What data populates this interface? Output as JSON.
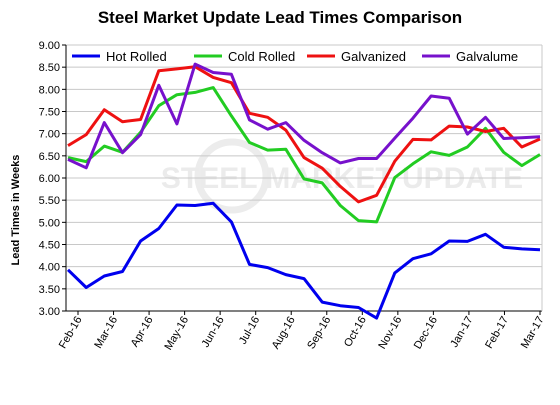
{
  "chart_data": {
    "type": "line",
    "title": "Steel Market Update Lead Times Comparison",
    "xlabel": "",
    "ylabel": "Lead Times in Weeks",
    "watermark": "STEEL MARKET UPDATE",
    "ylim": [
      3.0,
      9.0
    ],
    "y_ticks": [
      "9.00",
      "8.50",
      "8.00",
      "7.50",
      "7.00",
      "6.50",
      "6.00",
      "5.50",
      "5.00",
      "4.50",
      "4.00",
      "3.50",
      "3.00"
    ],
    "x_ticks": [
      "Feb-16",
      "Mar-16",
      "Apr-16",
      "May-16",
      "Jun-16",
      "Jul-16",
      "Aug-16",
      "Sep-16",
      "Oct-16",
      "Nov-16",
      "Dec-16",
      "Jan-17",
      "Feb-17",
      "Mar-17"
    ],
    "grid": true,
    "legend_position": "top",
    "series": [
      {
        "name": "Hot Rolled",
        "color": "#0000ee",
        "values": [
          3.93,
          3.53,
          3.79,
          3.89,
          4.58,
          4.86,
          5.39,
          5.38,
          5.43,
          5.01,
          4.05,
          3.98,
          3.82,
          3.73,
          3.2,
          3.12,
          3.08,
          2.84,
          3.86,
          4.18,
          4.29,
          4.58,
          4.57,
          4.73,
          4.44,
          4.4,
          4.38
        ]
      },
      {
        "name": "Cold Rolled",
        "color": "#22cc22",
        "values": [
          6.46,
          6.37,
          6.72,
          6.58,
          7.03,
          7.63,
          7.88,
          7.93,
          8.04,
          7.4,
          6.8,
          6.63,
          6.65,
          5.98,
          5.89,
          5.38,
          5.04,
          5.01,
          6.01,
          6.32,
          6.59,
          6.51,
          6.7,
          7.12,
          6.58,
          6.28,
          6.53
        ]
      },
      {
        "name": "Galvanized",
        "color": "#ee1111",
        "values": [
          6.73,
          6.98,
          7.54,
          7.27,
          7.32,
          8.42,
          8.46,
          8.51,
          8.27,
          8.15,
          7.46,
          7.37,
          7.08,
          6.46,
          6.22,
          5.81,
          5.46,
          5.61,
          6.38,
          6.87,
          6.86,
          7.17,
          7.15,
          7.05,
          7.12,
          6.7,
          6.88
        ]
      },
      {
        "name": "Galvalume",
        "color": "#7711cc",
        "values": [
          6.42,
          6.23,
          7.25,
          6.57,
          6.98,
          8.09,
          7.22,
          8.57,
          8.38,
          8.34,
          7.31,
          7.1,
          7.25,
          6.85,
          6.57,
          6.34,
          6.44,
          6.44,
          6.9,
          7.35,
          7.85,
          7.8,
          6.99,
          7.37,
          6.89,
          6.91,
          6.93
        ]
      }
    ]
  }
}
